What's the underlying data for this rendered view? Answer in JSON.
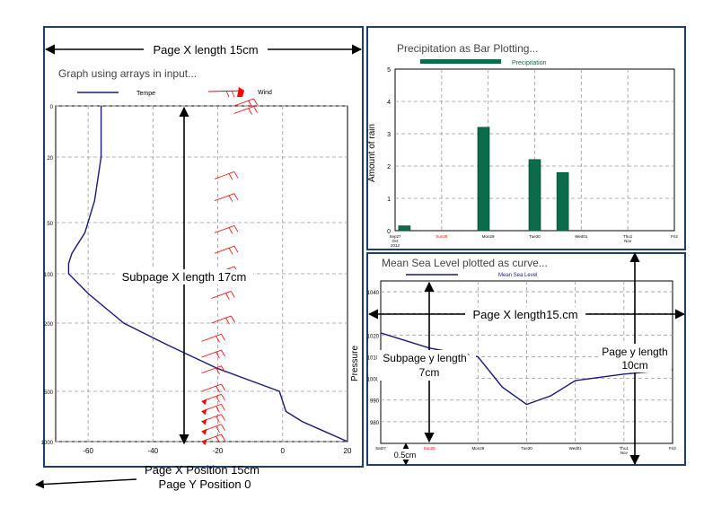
{
  "annotations": {
    "page_x_length_left": "Page X length 15cm",
    "subpage_x_length": "Subpage X length 17cm",
    "page_x_position": "Page  X Position  15cm",
    "page_y_position": "Page Y Position 0",
    "page_x_length_right": "Page X length15.cm",
    "subpage_y_length_1": "Subpage  y  length`",
    "subpage_y_length_2": "7cm",
    "page_y_length_1": "Page y length",
    "page_y_length_2": "10cm",
    "offset": "0.5cm"
  },
  "colors": {
    "frame": "#1f3f6a",
    "temperature_line": "#1a1a7a",
    "wind": "#ff0000",
    "bar": "#0b6b4a",
    "grid": "#9a9a9a",
    "weekend_label": "#ff0000"
  },
  "chart_data": [
    {
      "type": "line",
      "title": "Graph using arrays in input...",
      "xlim": [
        -70,
        20
      ],
      "x_ticks": [
        -60,
        -40,
        -20,
        0,
        20
      ],
      "y_reversed": true,
      "y_ticks": [
        0,
        20,
        50,
        100,
        200,
        500,
        1000
      ],
      "y_ticks_labels": [
        "0",
        "20",
        "50",
        "100",
        "200",
        "500",
        "1000"
      ],
      "ylim": [
        0,
        1000
      ],
      "legend": [
        "Tempe",
        "Wind"
      ],
      "series": [
        {
          "name": "Tempe",
          "points": [
            [
              -56,
              0
            ],
            [
              -56,
              5
            ],
            [
              -56,
              20
            ],
            [
              -58,
              40
            ],
            [
              -61,
              60
            ],
            [
              -65,
              80
            ],
            [
              -66,
              90
            ],
            [
              -66,
              100
            ],
            [
              -60,
              140
            ],
            [
              -49,
              200
            ],
            [
              -35,
              300
            ],
            [
              -20,
              400
            ],
            [
              -1,
              500
            ],
            [
              0,
              600
            ],
            [
              1,
              700
            ],
            [
              6,
              800
            ],
            [
              13,
              900
            ],
            [
              20,
              1000
            ]
          ]
        },
        {
          "name": "Wind",
          "points": [
            [
              -15,
              0
            ],
            [
              -15,
              3
            ],
            [
              -21,
              30
            ],
            [
              -21,
              40
            ],
            [
              -21,
              60
            ],
            [
              -21,
              80
            ],
            [
              -21,
              100
            ],
            [
              -22,
              150
            ],
            [
              -22,
              200
            ],
            [
              -25,
              280
            ],
            [
              -25,
              350
            ],
            [
              -25,
              420
            ],
            [
              -25,
              500
            ],
            [
              -25,
              600
            ],
            [
              -25,
              700
            ],
            [
              -25,
              800
            ],
            [
              -25,
              900
            ],
            [
              -25,
              1000
            ]
          ]
        }
      ]
    },
    {
      "type": "bar",
      "title": "Precipitation as Bar Plotting...",
      "legend": [
        "Precipitation"
      ],
      "ylabel": "Amount of rain",
      "ylim": [
        0,
        5
      ],
      "y_ticks": [
        0,
        1,
        2,
        3,
        4,
        5
      ],
      "categories": [
        "Sep27\nOct\n2012",
        "Sun28",
        "Mon29",
        "Tue30",
        "Wed01",
        "Thu1\nNov",
        "Fri2"
      ],
      "x": [
        0.2,
        1.9,
        3.0,
        3.6,
        4.2
      ],
      "values": [
        0.15,
        3.2,
        2.2,
        1.8,
        0
      ]
    },
    {
      "type": "line",
      "title": "Mean Sea Level plotted as curve...",
      "ylabel": "Pressure",
      "ylim": [
        970,
        1045
      ],
      "y_ticks": [
        980,
        990,
        1000,
        1010,
        1020,
        1040
      ],
      "legend": [
        "Mean Sea Level"
      ],
      "categories": [
        "Sat27",
        "Sun28",
        "Mon29",
        "Tue30",
        "Wed01",
        "Thu1\nNov",
        "Fri2"
      ],
      "series": [
        {
          "name": "Mean Sea Level",
          "points": [
            [
              0,
              1021
            ],
            [
              1,
              1014
            ],
            [
              2,
              1010
            ],
            [
              2.5,
              996
            ],
            [
              3,
              988
            ],
            [
              3.5,
              992
            ],
            [
              4,
              999
            ],
            [
              5,
              1002
            ],
            [
              6,
              1004
            ]
          ]
        }
      ]
    }
  ]
}
